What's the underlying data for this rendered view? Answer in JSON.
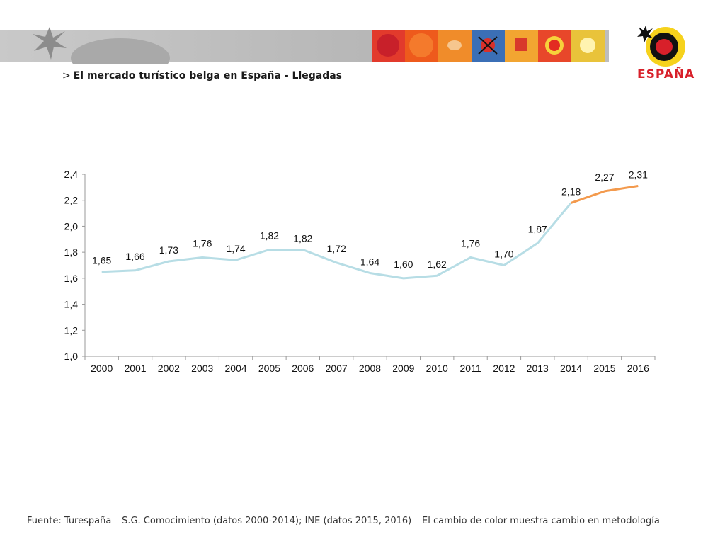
{
  "heading": {
    "marker": ">",
    "title": "El mercado turístico belga en España - Llegadas"
  },
  "banner": {
    "tile_colors": [
      "#e23a2c",
      "#ee5a1c",
      "#f08c2a",
      "#3b6fb6",
      "#f2a531",
      "#e8472a",
      "#e9c33a"
    ]
  },
  "logo": {
    "text": "ESPAÑA"
  },
  "footer": {
    "text": "Fuente: Turespaña – S.G. Comocimiento (datos 2000-2014); INE (datos 2015, 2016) – El cambio de color muestra cambio en metodología"
  },
  "chart_data": {
    "type": "line",
    "title": "",
    "xlabel": "",
    "ylabel": "",
    "categories": [
      "2000",
      "2001",
      "2002",
      "2003",
      "2004",
      "2005",
      "2006",
      "2007",
      "2008",
      "2009",
      "2010",
      "2011",
      "2012",
      "2013",
      "2014",
      "2015",
      "2016"
    ],
    "values": [
      1.65,
      1.66,
      1.73,
      1.76,
      1.74,
      1.82,
      1.82,
      1.72,
      1.64,
      1.6,
      1.62,
      1.76,
      1.7,
      1.87,
      2.18,
      2.27,
      2.31
    ],
    "data_labels": [
      "1,65",
      "1,66",
      "1,73",
      "1,76",
      "1,74",
      "1,82",
      "1,82",
      "1,72",
      "1,64",
      "1,60",
      "1,62",
      "1,76",
      "1,70",
      "1,87",
      "2,18",
      "2,27",
      "2,31"
    ],
    "segments": [
      {
        "from_index": 0,
        "to_index": 14,
        "color": "#b7dde5"
      },
      {
        "from_index": 14,
        "to_index": 16,
        "color": "#f39a4d"
      }
    ],
    "ylim": [
      1.0,
      2.4
    ],
    "yticks": [
      1.0,
      1.2,
      1.4,
      1.6,
      1.8,
      2.0,
      2.2,
      2.4
    ],
    "ytick_labels": [
      "1,0",
      "1,2",
      "1,4",
      "1,6",
      "1,8",
      "2,0",
      "2,2",
      "2,4"
    ],
    "grid": false,
    "legend": "none"
  }
}
